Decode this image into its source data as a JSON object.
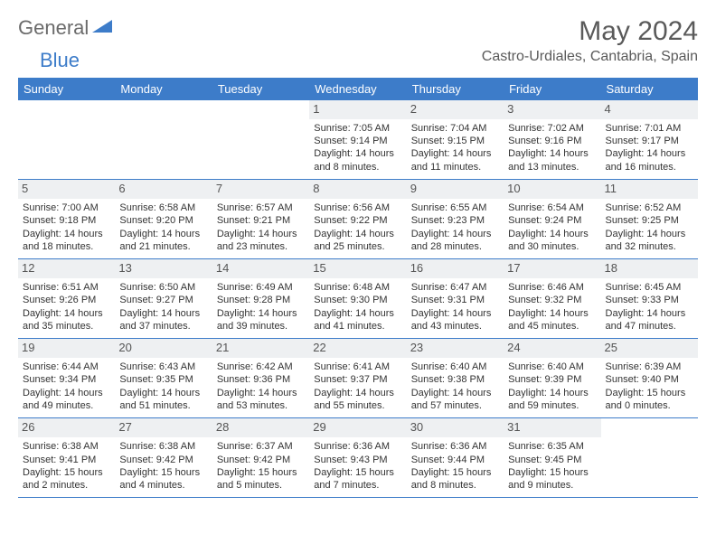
{
  "logo": {
    "text1": "General",
    "text2": "Blue"
  },
  "title": "May 2024",
  "location": "Castro-Urdiales, Cantabria, Spain",
  "colors": {
    "header_bg": "#3d7cc9",
    "header_text": "#ffffff",
    "daynum_bg": "#eef0f2",
    "border": "#3d7cc9",
    "logo_gray": "#6b6b6b",
    "logo_blue": "#3d7cc9"
  },
  "weekdays": [
    "Sunday",
    "Monday",
    "Tuesday",
    "Wednesday",
    "Thursday",
    "Friday",
    "Saturday"
  ],
  "weeks": [
    [
      null,
      null,
      null,
      {
        "n": "1",
        "sr": "7:05 AM",
        "ss": "9:14 PM",
        "dl": "14 hours and 8 minutes."
      },
      {
        "n": "2",
        "sr": "7:04 AM",
        "ss": "9:15 PM",
        "dl": "14 hours and 11 minutes."
      },
      {
        "n": "3",
        "sr": "7:02 AM",
        "ss": "9:16 PM",
        "dl": "14 hours and 13 minutes."
      },
      {
        "n": "4",
        "sr": "7:01 AM",
        "ss": "9:17 PM",
        "dl": "14 hours and 16 minutes."
      }
    ],
    [
      {
        "n": "5",
        "sr": "7:00 AM",
        "ss": "9:18 PM",
        "dl": "14 hours and 18 minutes."
      },
      {
        "n": "6",
        "sr": "6:58 AM",
        "ss": "9:20 PM",
        "dl": "14 hours and 21 minutes."
      },
      {
        "n": "7",
        "sr": "6:57 AM",
        "ss": "9:21 PM",
        "dl": "14 hours and 23 minutes."
      },
      {
        "n": "8",
        "sr": "6:56 AM",
        "ss": "9:22 PM",
        "dl": "14 hours and 25 minutes."
      },
      {
        "n": "9",
        "sr": "6:55 AM",
        "ss": "9:23 PM",
        "dl": "14 hours and 28 minutes."
      },
      {
        "n": "10",
        "sr": "6:54 AM",
        "ss": "9:24 PM",
        "dl": "14 hours and 30 minutes."
      },
      {
        "n": "11",
        "sr": "6:52 AM",
        "ss": "9:25 PM",
        "dl": "14 hours and 32 minutes."
      }
    ],
    [
      {
        "n": "12",
        "sr": "6:51 AM",
        "ss": "9:26 PM",
        "dl": "14 hours and 35 minutes."
      },
      {
        "n": "13",
        "sr": "6:50 AM",
        "ss": "9:27 PM",
        "dl": "14 hours and 37 minutes."
      },
      {
        "n": "14",
        "sr": "6:49 AM",
        "ss": "9:28 PM",
        "dl": "14 hours and 39 minutes."
      },
      {
        "n": "15",
        "sr": "6:48 AM",
        "ss": "9:30 PM",
        "dl": "14 hours and 41 minutes."
      },
      {
        "n": "16",
        "sr": "6:47 AM",
        "ss": "9:31 PM",
        "dl": "14 hours and 43 minutes."
      },
      {
        "n": "17",
        "sr": "6:46 AM",
        "ss": "9:32 PM",
        "dl": "14 hours and 45 minutes."
      },
      {
        "n": "18",
        "sr": "6:45 AM",
        "ss": "9:33 PM",
        "dl": "14 hours and 47 minutes."
      }
    ],
    [
      {
        "n": "19",
        "sr": "6:44 AM",
        "ss": "9:34 PM",
        "dl": "14 hours and 49 minutes."
      },
      {
        "n": "20",
        "sr": "6:43 AM",
        "ss": "9:35 PM",
        "dl": "14 hours and 51 minutes."
      },
      {
        "n": "21",
        "sr": "6:42 AM",
        "ss": "9:36 PM",
        "dl": "14 hours and 53 minutes."
      },
      {
        "n": "22",
        "sr": "6:41 AM",
        "ss": "9:37 PM",
        "dl": "14 hours and 55 minutes."
      },
      {
        "n": "23",
        "sr": "6:40 AM",
        "ss": "9:38 PM",
        "dl": "14 hours and 57 minutes."
      },
      {
        "n": "24",
        "sr": "6:40 AM",
        "ss": "9:39 PM",
        "dl": "14 hours and 59 minutes."
      },
      {
        "n": "25",
        "sr": "6:39 AM",
        "ss": "9:40 PM",
        "dl": "15 hours and 0 minutes."
      }
    ],
    [
      {
        "n": "26",
        "sr": "6:38 AM",
        "ss": "9:41 PM",
        "dl": "15 hours and 2 minutes."
      },
      {
        "n": "27",
        "sr": "6:38 AM",
        "ss": "9:42 PM",
        "dl": "15 hours and 4 minutes."
      },
      {
        "n": "28",
        "sr": "6:37 AM",
        "ss": "9:42 PM",
        "dl": "15 hours and 5 minutes."
      },
      {
        "n": "29",
        "sr": "6:36 AM",
        "ss": "9:43 PM",
        "dl": "15 hours and 7 minutes."
      },
      {
        "n": "30",
        "sr": "6:36 AM",
        "ss": "9:44 PM",
        "dl": "15 hours and 8 minutes."
      },
      {
        "n": "31",
        "sr": "6:35 AM",
        "ss": "9:45 PM",
        "dl": "15 hours and 9 minutes."
      },
      null
    ]
  ],
  "labels": {
    "sunrise": "Sunrise:",
    "sunset": "Sunset:",
    "daylight": "Daylight:"
  }
}
